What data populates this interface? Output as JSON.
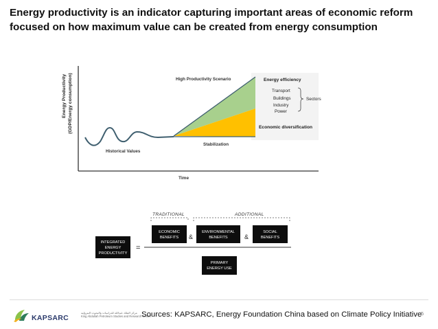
{
  "title": {
    "line1": "Energy productivity is an indicator capturing important areas of economic reform",
    "line2": "focused on how maximum value can be created from energy consumption"
  },
  "chart": {
    "y_axis_label_1": "Energy Productivity",
    "y_axis_label_2": "(GDP/Energy consumption)",
    "x_axis_label": "Time",
    "historical_label": "Historical Values",
    "high_scenario_label": "High Productivity Scenario",
    "stabilization_label": "Stabilization",
    "energy_efficiency_label": "Energy efficiency",
    "sectors": [
      "Transport",
      "Buildings",
      "Industry",
      "Power"
    ],
    "sectors_label": "Sectors",
    "economic_diversification_label": "Economic diversification",
    "colors": {
      "green": "#a8d08d",
      "yellow": "#ffc000",
      "line": "#3f5f6f"
    }
  },
  "equation": {
    "traditional_label": "TRADITIONAL",
    "additional_label": "ADDITIONAL",
    "integrated": [
      "INTEGRATED",
      "ENERGY",
      "PRODUCTIVITY"
    ],
    "equals": "=",
    "economic": [
      "ECONOMIC",
      "BENEFITS"
    ],
    "and1": "&",
    "environmental": [
      "ENVIRONMENTAL",
      "BENEFITS"
    ],
    "and2": "&",
    "social": [
      "SOCIAL",
      "BENEFITS"
    ],
    "primary": [
      "PRIMARY",
      "ENERGY USE"
    ],
    "box_color": "#0d0d0d"
  },
  "footer": {
    "logo_text": "KAPSARC",
    "logo_arabic_1": "مركز الملك عبدالله للدراسات والبحوث البترولية",
    "logo_arabic_2": "King Abdullah Petroleum Studies and Research Center",
    "sources": "Sources: KAPSARC, Energy Foundation China based on Climate Policy Initiative",
    "page_number": "5"
  }
}
